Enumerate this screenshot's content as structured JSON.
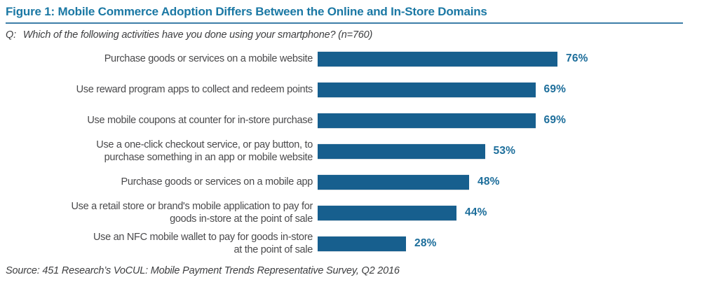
{
  "figure": {
    "title": "Figure 1: Mobile Commerce Adoption Differs Between the Online and In-Store Domains",
    "question_prefix": "Q:",
    "question_text": "Which of the following activities have you done using your smartphone? (n=760)",
    "source": "Source: 451 Research’s VoCUL: Mobile Payment Trends Representative Survey, Q2 2016"
  },
  "colors": {
    "bar": "#175f8e",
    "title_text": "#1b78a4",
    "value_label": "#1d6e9b",
    "title_rule": "#3d7ea8",
    "category_text": "#4a4a4c",
    "note_text": "#3d3e40",
    "background": "#ffffff"
  },
  "chart_data": {
    "type": "bar",
    "orientation": "horizontal",
    "title": "Figure 1: Mobile Commerce Adoption Differs Between the Online and In-Store Domains",
    "subtitle": "Q: Which of the following activities have you done using your smartphone? (n=760)",
    "xlabel": "",
    "ylabel": "",
    "xlim": [
      0,
      100
    ],
    "grid": false,
    "legend": "none",
    "unit": "%",
    "categories": [
      "Purchase goods or services on a mobile website",
      "Use reward program apps to collect and redeem points",
      "Use mobile coupons at counter for in-store purchase",
      "Use a one-click checkout service, or pay button, to\npurchase something in an app or mobile website",
      "Purchase goods or services on a mobile app",
      "Use a retail store or brand's mobile application to pay for\ngoods in-store at the point of sale",
      "Use an NFC mobile wallet to pay for goods in-store\nat the point of sale"
    ],
    "values": [
      76,
      69,
      69,
      53,
      48,
      44,
      28
    ],
    "value_labels": [
      "76%",
      "69%",
      "69%",
      "53%",
      "48%",
      "44%",
      "28%"
    ]
  }
}
